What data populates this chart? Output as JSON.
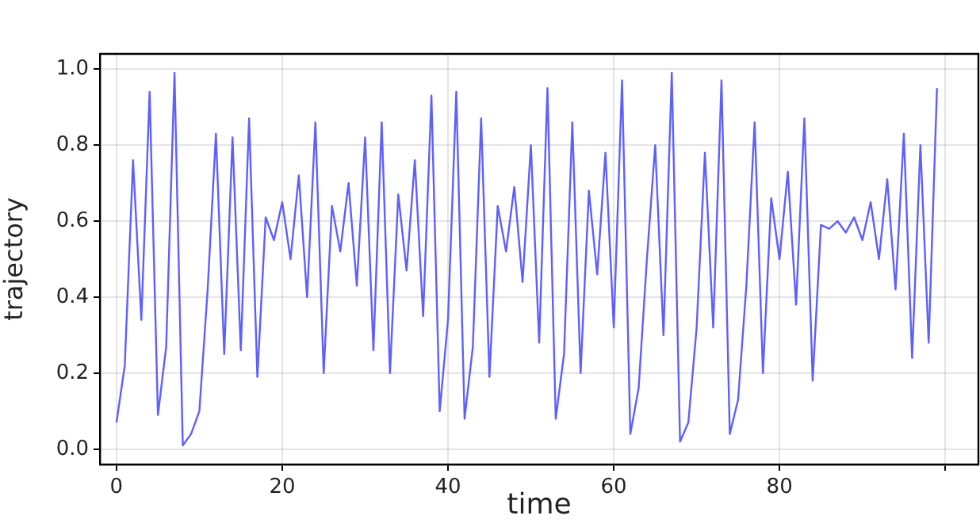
{
  "chart_data": {
    "type": "line",
    "xlabel": "time",
    "ylabel": "trajectory",
    "x": [
      0,
      1,
      2,
      3,
      4,
      5,
      6,
      7,
      8,
      9,
      10,
      11,
      12,
      13,
      14,
      15,
      16,
      17,
      18,
      19,
      20,
      21,
      22,
      23,
      24,
      25,
      26,
      27,
      28,
      29,
      30,
      31,
      32,
      33,
      34,
      35,
      36,
      37,
      38,
      39,
      40,
      41,
      42,
      43,
      44,
      45,
      46,
      47,
      48,
      49,
      50,
      51,
      52,
      53,
      54,
      55,
      56,
      57,
      58,
      59,
      60,
      61,
      62,
      63,
      64,
      65,
      66,
      67,
      68,
      69,
      70,
      71,
      72,
      73,
      74,
      75,
      76,
      77,
      78,
      79,
      80,
      81,
      82,
      83,
      84,
      85,
      86,
      87,
      88,
      89,
      90,
      91,
      92,
      93,
      94,
      95,
      96,
      97,
      98,
      99
    ],
    "series": [
      {
        "color": "#5f5fff",
        "values": [
          0.07,
          0.22,
          0.76,
          0.34,
          0.94,
          0.09,
          0.27,
          0.99,
          0.01,
          0.04,
          0.1,
          0.42,
          0.83,
          0.25,
          0.82,
          0.26,
          0.87,
          0.19,
          0.61,
          0.55,
          0.65,
          0.5,
          0.72,
          0.4,
          0.86,
          0.2,
          0.64,
          0.52,
          0.7,
          0.43,
          0.82,
          0.26,
          0.86,
          0.2,
          0.67,
          0.47,
          0.76,
          0.35,
          0.93,
          0.1,
          0.34,
          0.94,
          0.08,
          0.27,
          0.87,
          0.19,
          0.64,
          0.52,
          0.69,
          0.44,
          0.8,
          0.28,
          0.95,
          0.08,
          0.25,
          0.86,
          0.2,
          0.68,
          0.46,
          0.78,
          0.32,
          0.97,
          0.04,
          0.16,
          0.5,
          0.8,
          0.3,
          0.99,
          0.02,
          0.07,
          0.32,
          0.78,
          0.32,
          0.97,
          0.04,
          0.13,
          0.43,
          0.86,
          0.2,
          0.66,
          0.5,
          0.73,
          0.38,
          0.87,
          0.18,
          0.59,
          0.58,
          0.6,
          0.57,
          0.61,
          0.55,
          0.65,
          0.5,
          0.71,
          0.42,
          0.83,
          0.24,
          0.8,
          0.28,
          0.95
        ]
      }
    ],
    "xlim": [
      -2,
      104
    ],
    "xticks": [
      0,
      20,
      40,
      60,
      80,
      {
        "value": 100,
        "label": null
      }
    ],
    "ylim": [
      -0.04,
      1.04
    ],
    "yticks": [
      {
        "value": 0,
        "label": "0.0"
      },
      {
        "value": 0.2,
        "label": "0.2"
      },
      {
        "value": 0.4,
        "label": "0.4"
      },
      {
        "value": 0.6,
        "label": "0.6"
      },
      {
        "value": 0.8,
        "label": "0.8"
      },
      {
        "value": 1,
        "label": "1.0"
      }
    ],
    "grid": true,
    "legend": false,
    "marker": "none",
    "line_style": "solid"
  }
}
